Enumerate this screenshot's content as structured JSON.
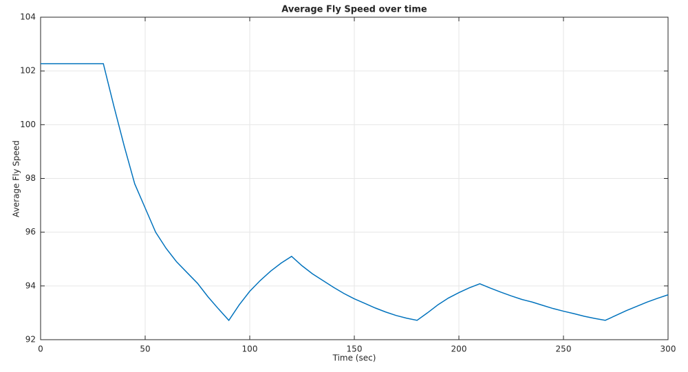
{
  "chart_data": {
    "type": "line",
    "title": "Average Fly Speed over time",
    "xlabel": "Time (sec)",
    "ylabel": "Average Fly Speed",
    "x": [
      0,
      30,
      35,
      40,
      45,
      50,
      55,
      60,
      65,
      70,
      75,
      80,
      85,
      90,
      95,
      100,
      105,
      110,
      115,
      120,
      125,
      130,
      135,
      140,
      145,
      150,
      155,
      160,
      165,
      170,
      175,
      180,
      185,
      190,
      195,
      200,
      205,
      210,
      215,
      220,
      225,
      230,
      235,
      240,
      245,
      250,
      255,
      260,
      265,
      270,
      275,
      280,
      285,
      290,
      295,
      300
    ],
    "series": [
      {
        "color": "#0072bd",
        "values": [
          102.27,
          102.27,
          100.7,
          99.2,
          97.8,
          96.9,
          96.0,
          95.4,
          94.9,
          94.5,
          94.1,
          93.6,
          93.15,
          92.72,
          93.3,
          93.8,
          94.2,
          94.55,
          94.85,
          95.1,
          94.75,
          94.45,
          94.2,
          93.95,
          93.72,
          93.52,
          93.35,
          93.18,
          93.03,
          92.9,
          92.8,
          92.72,
          93.0,
          93.3,
          93.55,
          93.75,
          93.93,
          94.08,
          93.92,
          93.77,
          93.63,
          93.5,
          93.4,
          93.28,
          93.16,
          93.06,
          92.97,
          92.87,
          92.79,
          92.72,
          92.9,
          93.08,
          93.24,
          93.4,
          93.54,
          93.67
        ]
      }
    ],
    "xlim": [
      0,
      300
    ],
    "xticks": [
      0,
      50,
      100,
      150,
      200,
      250,
      300
    ],
    "ylim": [
      92,
      104
    ],
    "yticks": [
      92,
      94,
      96,
      98,
      100,
      102,
      104
    ],
    "grid": true
  }
}
